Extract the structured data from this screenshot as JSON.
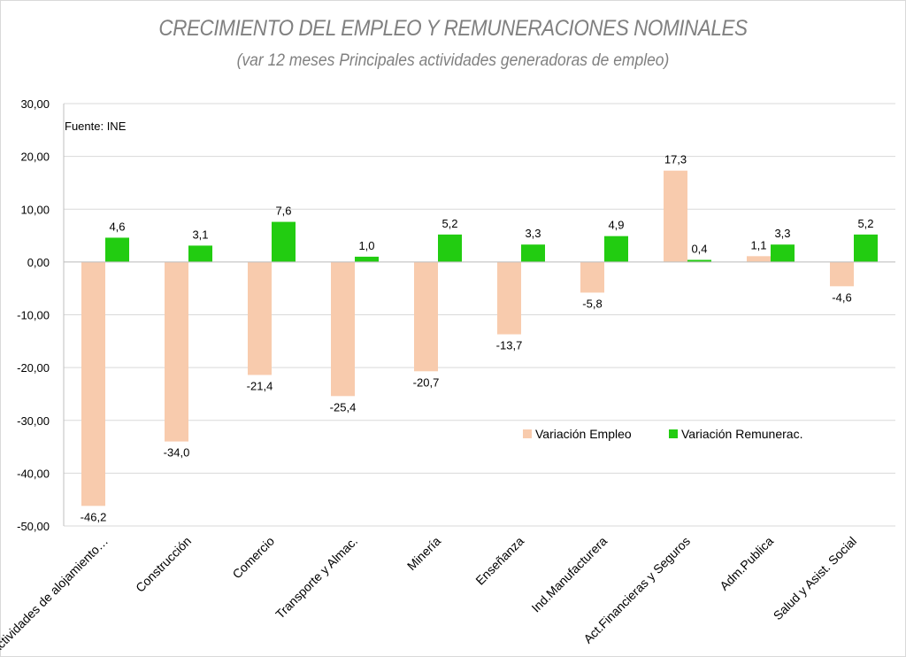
{
  "chart_data": {
    "type": "bar",
    "title": "CRECIMIENTO DEL EMPLEO Y REMUNERACIONES NOMINALES",
    "subtitle": "(var 12 meses Principales actividades generadoras de empleo)",
    "source": "Fuente: INE",
    "categories": [
      "Actividades de alojamiento…",
      "Construcción",
      "Comercio",
      "Transporte y Almac.",
      "Minería",
      "Enseñanza",
      "Ind.Manufacturera",
      "Act.Financieras y Seguros",
      "Adm.Publica",
      "Salud y Asist. Social"
    ],
    "series": [
      {
        "name": "Variación Empleo",
        "color": "#f8cbad",
        "values": [
          -46.2,
          -34.0,
          -21.4,
          -25.4,
          -20.7,
          -13.7,
          -5.8,
          17.3,
          1.1,
          -4.6
        ],
        "labels": [
          "-46,2",
          "-34,0",
          "-21,4",
          "-25,4",
          "-20,7",
          "-13,7",
          "-5,8",
          "17,3",
          "1,1",
          "-4,6"
        ]
      },
      {
        "name": "Variación Remunerac.",
        "color": "#22cc11",
        "values": [
          4.6,
          3.1,
          7.6,
          1.0,
          5.2,
          3.3,
          4.9,
          0.4,
          3.3,
          5.2
        ],
        "labels": [
          "4,6",
          "3,1",
          "7,6",
          "1,0",
          "5,2",
          "3,3",
          "4,9",
          "0,4",
          "3,3",
          "5,2"
        ]
      }
    ],
    "ylim": [
      -50,
      30
    ],
    "yticks": [
      30,
      20,
      10,
      0,
      -10,
      -20,
      -30,
      -40,
      -50
    ],
    "ytick_labels": [
      "30,00",
      "20,00",
      "10,00",
      "0,00",
      "-10,00",
      "-20,00",
      "-30,00",
      "-40,00",
      "-50,00"
    ],
    "grid": true,
    "legend": "inside-right"
  }
}
